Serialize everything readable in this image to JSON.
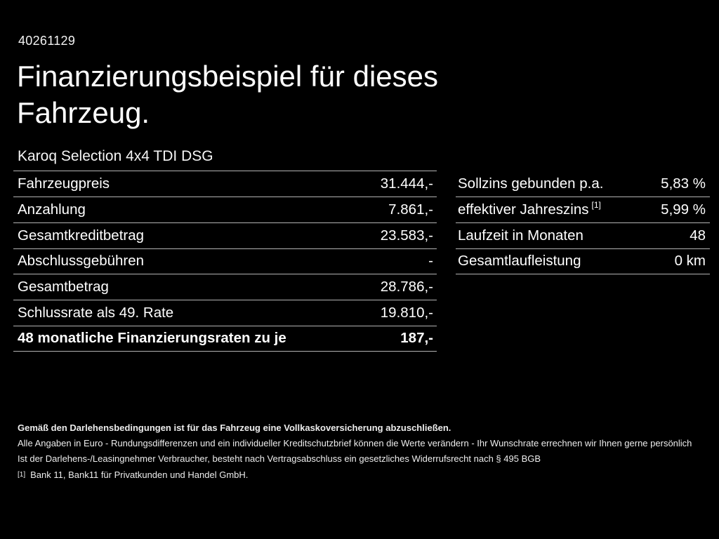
{
  "colors": {
    "background": "#000000",
    "text": "#ffffff",
    "divider": "#b3b3b3"
  },
  "doc_id": "40261129",
  "title_line1": "Finanzierungsbeispiel für dieses",
  "title_line2": "Fahrzeug.",
  "vehicle_model": "Karoq Selection 4x4 TDI DSG",
  "finance_table": {
    "rows": [
      {
        "label": "Fahrzeugpreis",
        "value": "31.444,-"
      },
      {
        "label": "Anzahlung",
        "value": "7.861,-"
      },
      {
        "label": "Gesamtkreditbetrag",
        "value": "23.583,-"
      },
      {
        "label": "Abschlussgebühren",
        "value": "-"
      },
      {
        "label": "Gesamtbetrag",
        "value": "28.786,-"
      },
      {
        "label": "Schlussrate als 49. Rate",
        "value": "19.810,-"
      },
      {
        "label": "48 monatliche Finanzierungsraten zu je",
        "value": "187,-"
      }
    ]
  },
  "conditions_table": {
    "rows": [
      {
        "label": "Sollzins gebunden p.a.",
        "sup": "",
        "value": "5,83 %"
      },
      {
        "label": "effektiver Jahreszins",
        "sup": "[1]",
        "value": "5,99 %"
      },
      {
        "label": "Laufzeit in Monaten",
        "sup": "",
        "value": "48"
      },
      {
        "label": "Gesamtlaufleistung",
        "sup": "",
        "value": "0 km"
      }
    ]
  },
  "footnotes": {
    "insurance_bold": "Gemäß den Darlehensbedingungen ist für das Fahrzeug eine Vollkaskoversicherung abzuschließen.",
    "disclaimer1": "Alle Angaben in Euro - Rundungsdifferenzen und ein individueller Kreditschutzbrief können die Werte verändern - Ihr Wunschrate errechnen wir Ihnen gerne persönlich",
    "disclaimer2": "Ist der Darlehens-/Leasingnehmer Verbraucher, besteht nach Vertragsabschluss ein gesetzliches Widerrufsrecht nach § 495 BGB",
    "bank_ref_marker": "[1]",
    "bank_ref": "Bank 11, Bank11 für Privatkunden und Handel GmbH."
  }
}
